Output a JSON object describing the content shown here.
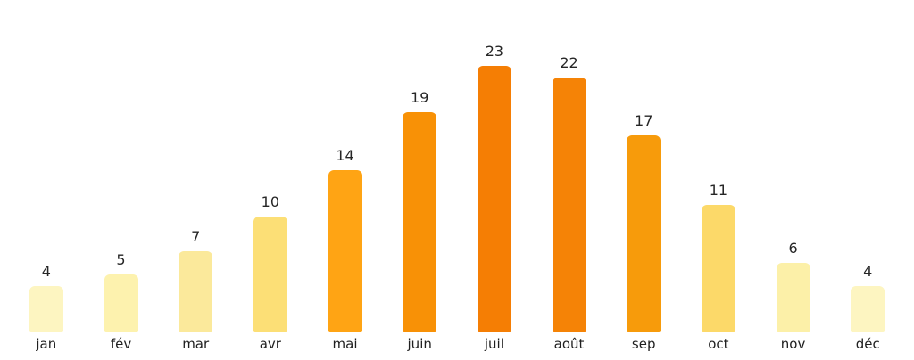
{
  "chart_data": {
    "type": "bar",
    "title": "",
    "xlabel": "",
    "ylabel": "",
    "categories": [
      "jan",
      "fév",
      "mar",
      "avr",
      "mai",
      "juin",
      "juil",
      "août",
      "sep",
      "oct",
      "nov",
      "déc"
    ],
    "values": [
      4,
      5,
      7,
      10,
      14,
      19,
      23,
      22,
      17,
      11,
      6,
      4
    ],
    "colors": [
      "#FDF5C1",
      "#FDF2AE",
      "#FBE99B",
      "#FCDF76",
      "#FFA414",
      "#F89106",
      "#F57E04",
      "#F58306",
      "#F79B0B",
      "#FCD969",
      "#FCF0A8",
      "#FDF5C1"
    ],
    "ylim": [
      0,
      23
    ],
    "grid": false,
    "legend_position": "none",
    "axes_visible": false,
    "background_color": "#FFFFFF",
    "label_color": "#262626"
  }
}
